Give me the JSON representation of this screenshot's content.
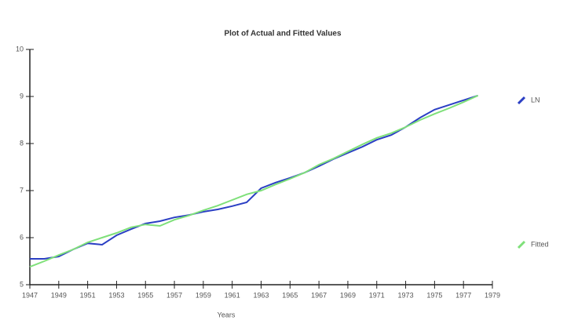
{
  "chart_data": {
    "type": "line",
    "title": "Plot of Actual and Fitted Values",
    "x_label": "Years",
    "x": [
      1947,
      1948,
      1949,
      1950,
      1951,
      1952,
      1953,
      1954,
      1955,
      1956,
      1957,
      1958,
      1959,
      1960,
      1961,
      1962,
      1963,
      1964,
      1965,
      1966,
      1967,
      1968,
      1969,
      1970,
      1971,
      1972,
      1973,
      1974,
      1975,
      1976,
      1977,
      1978
    ],
    "series": [
      {
        "name": "LN",
        "color": "#2b3fc4",
        "values": [
          5.55,
          5.55,
          5.6,
          5.75,
          5.88,
          5.85,
          6.05,
          6.18,
          6.3,
          6.35,
          6.43,
          6.48,
          6.55,
          6.6,
          6.67,
          6.75,
          7.05,
          7.17,
          7.27,
          7.38,
          7.52,
          7.67,
          7.8,
          7.93,
          8.08,
          8.18,
          8.35,
          8.55,
          8.72,
          8.82,
          8.92,
          9.02
        ]
      },
      {
        "name": "Fitted",
        "color": "#7fe07a",
        "values": [
          5.38,
          5.5,
          5.63,
          5.75,
          5.9,
          6.0,
          6.1,
          6.22,
          6.28,
          6.25,
          6.38,
          6.47,
          6.58,
          6.68,
          6.8,
          6.92,
          7.0,
          7.13,
          7.25,
          7.38,
          7.55,
          7.68,
          7.83,
          7.98,
          8.12,
          8.22,
          8.35,
          8.5,
          8.63,
          8.75,
          8.88,
          9.02
        ]
      }
    ],
    "xlim": [
      1947,
      1979
    ],
    "xticks": [
      1947,
      1949,
      1951,
      1953,
      1955,
      1957,
      1959,
      1961,
      1963,
      1965,
      1967,
      1969,
      1971,
      1973,
      1975,
      1977,
      1979
    ],
    "ylim": [
      5,
      10
    ],
    "yticks": [
      5,
      6,
      7,
      8,
      9,
      10
    ],
    "grid": false
  }
}
